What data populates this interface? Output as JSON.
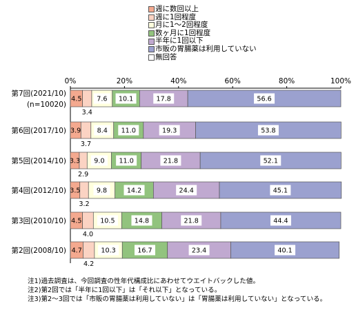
{
  "chart_data": {
    "type": "bar",
    "orientation": "horizontal",
    "stacked": true,
    "percent": true,
    "xlim": [
      0,
      100
    ],
    "x_ticks": [
      "0%",
      "20%",
      "40%",
      "60%",
      "80%",
      "100%"
    ],
    "categories": [
      [
        "第7回(2021/10)",
        "(n=10020)"
      ],
      [
        "第6回(2017/10)"
      ],
      [
        "第5回(2014/10)"
      ],
      [
        "第4回(2012/10)"
      ],
      [
        "第3回(2010/10)"
      ],
      [
        "第2回(2008/10)"
      ]
    ],
    "legend_position": "top",
    "series": [
      {
        "name": "週に数回以上",
        "color": "#f4a98f",
        "values": [
          4.5,
          3.9,
          3.3,
          3.5,
          4.5,
          4.7
        ]
      },
      {
        "name": "週に1回程度",
        "color": "#fbd3c3",
        "values": [
          3.4,
          3.7,
          2.9,
          3.2,
          4.0,
          4.2
        ]
      },
      {
        "name": "月に1～2回程度",
        "color": "#ffffdd",
        "values": [
          7.6,
          8.4,
          9.0,
          9.8,
          10.5,
          10.3
        ]
      },
      {
        "name": "数ヶ月に1回程度",
        "color": "#92c37e",
        "values": [
          10.1,
          11.0,
          11.0,
          14.2,
          14.8,
          16.7
        ]
      },
      {
        "name": "半年に1回以下",
        "color": "#c0a9d0",
        "values": [
          17.8,
          19.3,
          21.8,
          24.4,
          21.8,
          23.4
        ]
      },
      {
        "name": "市販の胃腸薬は利用していない",
        "color": "#9ba1cf",
        "values": [
          56.6,
          53.8,
          52.1,
          45.1,
          44.4,
          40.1
        ]
      },
      {
        "name": "無回答",
        "color": "#ffffff",
        "values": [
          null,
          null,
          null,
          null,
          null,
          null
        ]
      }
    ],
    "label_colors": [
      "#f4a98f",
      "#ffffdd",
      "#92c37e",
      "#c0a9d0",
      "#9ba1cf"
    ],
    "bar_labels": [
      [
        "4.5",
        "3.4",
        "7.6",
        "10.1",
        "17.8",
        "56.6"
      ],
      [
        "3.9",
        "3.7",
        "8.4",
        "11.0",
        "19.3",
        "53.8"
      ],
      [
        "3.3",
        "2.9",
        "9.0",
        "11.0",
        "21.8",
        "52.1"
      ],
      [
        "3.5",
        "3.2",
        "9.8",
        "14.2",
        "24.4",
        "45.1"
      ],
      [
        "4.5",
        "4.0",
        "10.5",
        "14.8",
        "21.8",
        "44.4"
      ],
      [
        "4.7",
        "4.2",
        "10.3",
        "16.7",
        "23.4",
        "40.1"
      ]
    ]
  },
  "notes": [
    "注1)過去調査は、今回調査の性年代構成比にあわせてウエイトバックした値。",
    "注2)第2回では「半年に1回以下」は「それ以下」となっている。",
    "注3)第2～3回では「市販の胃腸薬は利用していない」は「胃腸薬は利用していない」となっている。"
  ]
}
